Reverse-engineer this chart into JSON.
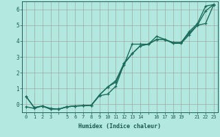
{
  "xlabel": "Humidex (Indice chaleur)",
  "background_color": "#b2e8e0",
  "grid_color": "#888888",
  "line_color": "#1a6b5a",
  "x_hours": [
    0,
    1,
    2,
    3,
    4,
    5,
    6,
    7,
    8,
    9,
    10,
    11,
    12,
    13,
    14,
    15,
    16,
    17,
    18,
    19,
    20,
    21,
    22,
    23
  ],
  "line1_y": [
    0.5,
    -0.2,
    -0.1,
    -0.3,
    -0.3,
    -0.15,
    -0.1,
    -0.08,
    -0.05,
    0.6,
    1.1,
    1.4,
    2.5,
    3.8,
    3.8,
    3.8,
    4.3,
    4.1,
    3.9,
    3.9,
    4.6,
    5.1,
    6.2,
    6.3
  ],
  "line2_y": [
    0.5,
    -0.2,
    -0.1,
    -0.3,
    -0.3,
    -0.15,
    -0.1,
    -0.08,
    -0.05,
    0.6,
    1.1,
    1.5,
    2.6,
    3.2,
    3.7,
    3.8,
    4.1,
    4.1,
    3.9,
    3.9,
    4.5,
    5.0,
    5.1,
    6.3
  ],
  "line3_y": [
    -0.15,
    -0.25,
    -0.1,
    -0.25,
    -0.3,
    -0.15,
    -0.1,
    -0.08,
    -0.05,
    0.55,
    0.65,
    1.15,
    2.55,
    3.2,
    3.7,
    3.8,
    4.1,
    4.1,
    3.85,
    3.85,
    4.4,
    5.0,
    5.9,
    6.3
  ],
  "ylim": [
    -0.5,
    6.5
  ],
  "xlim": [
    -0.5,
    23.5
  ],
  "yticks": [
    0,
    1,
    2,
    3,
    4,
    5,
    6
  ],
  "skip_xticks": [
    4,
    15,
    20
  ]
}
